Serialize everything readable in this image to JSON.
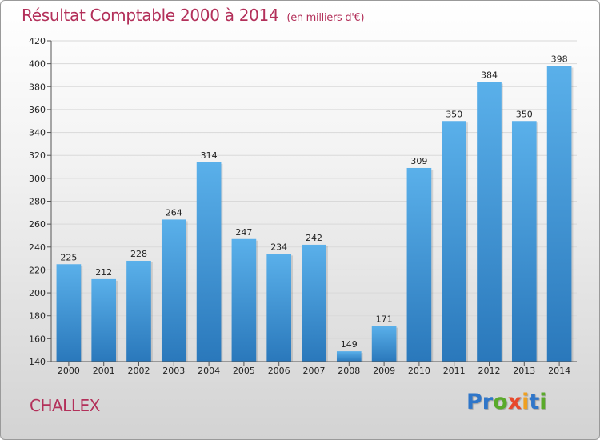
{
  "title": "Résultat Comptable 2000 à 2014",
  "subtitle": "(en milliers d'€)",
  "commune": "CHALLEX",
  "logo": {
    "letters": [
      {
        "ch": "P",
        "color": "#2f76c9"
      },
      {
        "ch": "r",
        "color": "#2f76c9"
      },
      {
        "ch": "o",
        "color": "#5aaa2a"
      },
      {
        "ch": "x",
        "color": "#e8492b"
      },
      {
        "ch": "i",
        "color": "#f0a020"
      },
      {
        "ch": "t",
        "color": "#2f76c9"
      },
      {
        "ch": "i",
        "color": "#5aaa2a"
      }
    ]
  },
  "colors": {
    "title": "#b3305a",
    "bar_top": "#5ab0ea",
    "bar_bottom": "#2a78bb",
    "grid": "#d9d9d9"
  },
  "chart_data": {
    "type": "bar",
    "title": "Résultat Comptable 2000 à 2014",
    "subtitle": "(en milliers d'€)",
    "xlabel": "",
    "ylabel": "",
    "categories": [
      "2000",
      "2001",
      "2002",
      "2003",
      "2004",
      "2005",
      "2006",
      "2007",
      "2008",
      "2009",
      "2010",
      "2011",
      "2012",
      "2013",
      "2014"
    ],
    "values": [
      225,
      212,
      228,
      264,
      314,
      247,
      234,
      242,
      149,
      171,
      309,
      350,
      384,
      350,
      398
    ],
    "ylim": [
      140,
      420
    ],
    "yticks": [
      140,
      160,
      180,
      200,
      220,
      240,
      260,
      280,
      300,
      320,
      340,
      360,
      380,
      400,
      420
    ],
    "grid": true,
    "data_labels": true
  }
}
